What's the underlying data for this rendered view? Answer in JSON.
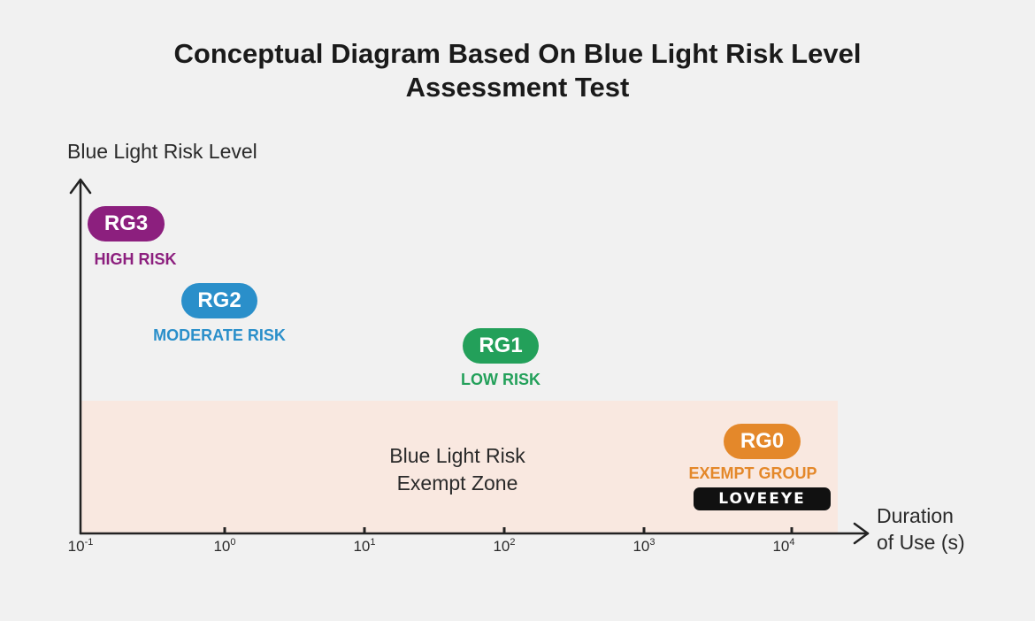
{
  "title": {
    "line1": "Conceptual Diagram Based On Blue Light Risk Level",
    "line2": "Assessment Test"
  },
  "y_axis": {
    "label": "Blue Light Risk Level"
  },
  "x_axis": {
    "label_line1": "Duration",
    "label_line2": "of Use (s)",
    "ticks": [
      {
        "base": "10",
        "exp": "-1"
      },
      {
        "base": "10",
        "exp": "0"
      },
      {
        "base": "10",
        "exp": "1"
      },
      {
        "base": "10",
        "exp": "2"
      },
      {
        "base": "10",
        "exp": "3"
      },
      {
        "base": "10",
        "exp": "4"
      }
    ]
  },
  "zone": {
    "line1": "Blue Light Risk",
    "line2": "Exempt Zone"
  },
  "groups": [
    {
      "code": "RG3",
      "label": "HIGH RISK",
      "color": "#8c1f7e"
    },
    {
      "code": "RG2",
      "label": "MODERATE RISK",
      "color": "#2a8fca"
    },
    {
      "code": "RG1",
      "label": "LOW RISK",
      "color": "#23a05a"
    },
    {
      "code": "RG0",
      "label": "EXEMPT GROUP",
      "color": "#e4882a"
    }
  ],
  "brand": {
    "text": "LOVEEYE"
  }
}
